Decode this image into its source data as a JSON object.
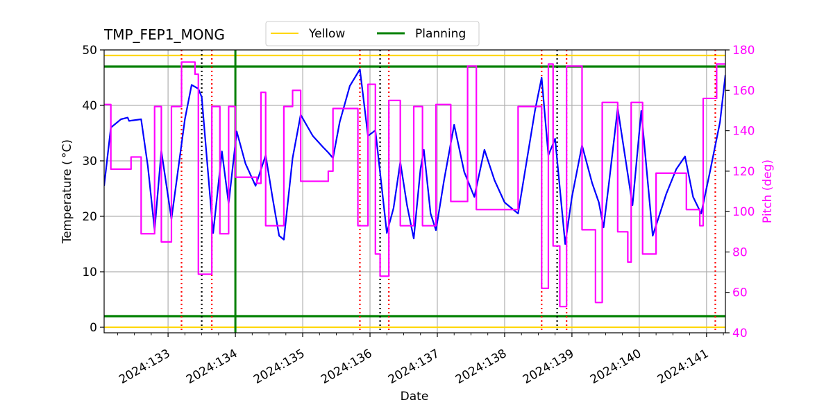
{
  "chart_data": {
    "type": "line",
    "title": "TMP_FEP1_MONG",
    "xlabel": "Date",
    "ylabel": "Temperature ($^\\circ$C)",
    "ylabel_display": "Temperature ( °C)",
    "y2label": "Pitch (deg)",
    "x_unit": "day of year 2024",
    "xlim": [
      132.05,
      141.28
    ],
    "ylim": [
      -1,
      50
    ],
    "y2lim": [
      40,
      180
    ],
    "x_ticks": [
      {
        "value": 133,
        "label": "2024:133"
      },
      {
        "value": 134,
        "label": "2024:134"
      },
      {
        "value": 135,
        "label": "2024:135"
      },
      {
        "value": 136,
        "label": "2024:136"
      },
      {
        "value": 137,
        "label": "2024:137"
      },
      {
        "value": 138,
        "label": "2024:138"
      },
      {
        "value": 139,
        "label": "2024:139"
      },
      {
        "value": 140,
        "label": "2024:140"
      },
      {
        "value": 141,
        "label": "2024:141"
      }
    ],
    "y_ticks": [
      0,
      10,
      20,
      30,
      40,
      50
    ],
    "y2_ticks": [
      40,
      60,
      80,
      100,
      120,
      140,
      160,
      180
    ],
    "grid": true,
    "legend": {
      "placement": "top-center",
      "entries": [
        {
          "name": "Yellow",
          "color": "#ffd700"
        },
        {
          "name": "Planning",
          "color": "#008000"
        }
      ]
    },
    "limit_lines": [
      {
        "name": "Yellow",
        "color": "#ffd700",
        "values": [
          0,
          49
        ]
      },
      {
        "name": "Planning",
        "color": "#008000",
        "values": [
          2,
          47
        ]
      }
    ],
    "vertical_lines": [
      {
        "color": "#008000",
        "style": "solid",
        "x": [
          134.0
        ]
      },
      {
        "color": "#ff0000",
        "style": "dotted",
        "x": [
          133.2,
          133.65,
          135.85,
          136.28,
          138.55,
          138.92,
          141.13
        ]
      },
      {
        "color": "#000000",
        "style": "dotted",
        "x": [
          133.5,
          136.15,
          138.78
        ]
      }
    ],
    "series": [
      {
        "name": "",
        "axis": "left",
        "color": "#0000ff",
        "points": [
          [
            132.05,
            25.5
          ],
          [
            132.15,
            36.0
          ],
          [
            132.3,
            37.5
          ],
          [
            132.4,
            37.8
          ],
          [
            132.42,
            37.2
          ],
          [
            132.6,
            37.5
          ],
          [
            132.7,
            29.0
          ],
          [
            132.8,
            17.5
          ],
          [
            132.9,
            31.8
          ],
          [
            133.05,
            19.5
          ],
          [
            133.25,
            37.5
          ],
          [
            133.35,
            43.7
          ],
          [
            133.45,
            43.0
          ],
          [
            133.5,
            41.5
          ],
          [
            133.6,
            27.0
          ],
          [
            133.67,
            17.0
          ],
          [
            133.8,
            31.7
          ],
          [
            133.9,
            22.3
          ],
          [
            134.02,
            35.3
          ],
          [
            134.15,
            29.5
          ],
          [
            134.3,
            25.5
          ],
          [
            134.45,
            31.0
          ],
          [
            134.55,
            23.5
          ],
          [
            134.65,
            16.5
          ],
          [
            134.72,
            15.8
          ],
          [
            134.85,
            30.5
          ],
          [
            134.97,
            38.3
          ],
          [
            135.15,
            34.5
          ],
          [
            135.3,
            32.5
          ],
          [
            135.38,
            31.5
          ],
          [
            135.45,
            30.5
          ],
          [
            135.55,
            37.0
          ],
          [
            135.7,
            43.5
          ],
          [
            135.85,
            46.5
          ],
          [
            135.97,
            34.5
          ],
          [
            136.08,
            35.5
          ],
          [
            136.25,
            17.0
          ],
          [
            136.35,
            21.5
          ],
          [
            136.45,
            29.8
          ],
          [
            136.55,
            22.0
          ],
          [
            136.65,
            16.0
          ],
          [
            136.75,
            28.5
          ],
          [
            136.8,
            32.0
          ],
          [
            136.9,
            20.5
          ],
          [
            136.98,
            17.5
          ],
          [
            137.1,
            26.5
          ],
          [
            137.25,
            36.5
          ],
          [
            137.4,
            28.0
          ],
          [
            137.55,
            23.5
          ],
          [
            137.7,
            32.0
          ],
          [
            137.85,
            26.5
          ],
          [
            138.0,
            22.5
          ],
          [
            138.2,
            20.5
          ],
          [
            138.45,
            39.0
          ],
          [
            138.55,
            45.0
          ],
          [
            138.65,
            31.0
          ],
          [
            138.75,
            34.0
          ],
          [
            138.9,
            15.0
          ],
          [
            139.0,
            23.5
          ],
          [
            139.15,
            32.8
          ],
          [
            139.3,
            26.0
          ],
          [
            139.4,
            22.5
          ],
          [
            139.47,
            18.0
          ],
          [
            139.55,
            26.0
          ],
          [
            139.68,
            39.5
          ],
          [
            139.9,
            22.0
          ],
          [
            140.03,
            39.0
          ],
          [
            140.2,
            16.5
          ],
          [
            140.4,
            24.0
          ],
          [
            140.55,
            28.5
          ],
          [
            140.68,
            30.8
          ],
          [
            140.8,
            23.5
          ],
          [
            140.92,
            20.5
          ],
          [
            141.05,
            28.0
          ],
          [
            141.2,
            37.0
          ],
          [
            141.28,
            45.5
          ]
        ]
      },
      {
        "name": "",
        "axis": "right",
        "color": "#ff00ff",
        "points": [
          [
            132.05,
            153
          ],
          [
            132.15,
            153
          ],
          [
            132.15,
            121
          ],
          [
            132.45,
            121
          ],
          [
            132.45,
            127
          ],
          [
            132.6,
            127
          ],
          [
            132.6,
            89
          ],
          [
            132.8,
            89
          ],
          [
            132.8,
            152
          ],
          [
            132.9,
            152
          ],
          [
            132.9,
            85
          ],
          [
            133.05,
            85
          ],
          [
            133.05,
            152
          ],
          [
            133.2,
            152
          ],
          [
            133.2,
            174
          ],
          [
            133.4,
            174
          ],
          [
            133.4,
            168
          ],
          [
            133.45,
            168
          ],
          [
            133.45,
            69
          ],
          [
            133.65,
            69
          ],
          [
            133.65,
            152
          ],
          [
            133.77,
            152
          ],
          [
            133.77,
            89
          ],
          [
            133.9,
            89
          ],
          [
            133.9,
            152
          ],
          [
            134.0,
            152
          ],
          [
            134.0,
            117
          ],
          [
            134.32,
            117
          ],
          [
            134.32,
            114
          ],
          [
            134.38,
            114
          ],
          [
            134.38,
            159
          ],
          [
            134.45,
            159
          ],
          [
            134.45,
            93
          ],
          [
            134.72,
            93
          ],
          [
            134.72,
            152
          ],
          [
            134.85,
            152
          ],
          [
            134.85,
            160
          ],
          [
            134.97,
            160
          ],
          [
            134.97,
            115
          ],
          [
            135.38,
            115
          ],
          [
            135.38,
            120
          ],
          [
            135.45,
            120
          ],
          [
            135.45,
            151
          ],
          [
            135.82,
            151
          ],
          [
            135.82,
            93
          ],
          [
            135.97,
            93
          ],
          [
            135.97,
            163
          ],
          [
            136.08,
            163
          ],
          [
            136.08,
            79
          ],
          [
            136.15,
            79
          ],
          [
            136.15,
            68
          ],
          [
            136.28,
            68
          ],
          [
            136.28,
            155
          ],
          [
            136.45,
            155
          ],
          [
            136.45,
            93
          ],
          [
            136.65,
            93
          ],
          [
            136.65,
            152
          ],
          [
            136.78,
            152
          ],
          [
            136.78,
            93
          ],
          [
            136.98,
            93
          ],
          [
            136.98,
            153
          ],
          [
            137.2,
            153
          ],
          [
            137.2,
            105
          ],
          [
            137.45,
            105
          ],
          [
            137.45,
            172
          ],
          [
            137.58,
            172
          ],
          [
            137.58,
            101
          ],
          [
            138.2,
            101
          ],
          [
            138.2,
            152
          ],
          [
            138.55,
            152
          ],
          [
            138.55,
            62
          ],
          [
            138.65,
            62
          ],
          [
            138.65,
            173
          ],
          [
            138.72,
            173
          ],
          [
            138.72,
            83
          ],
          [
            138.82,
            83
          ],
          [
            138.82,
            53
          ],
          [
            138.92,
            53
          ],
          [
            138.92,
            172
          ],
          [
            139.15,
            172
          ],
          [
            139.15,
            91
          ],
          [
            139.35,
            91
          ],
          [
            139.35,
            55
          ],
          [
            139.45,
            55
          ],
          [
            139.45,
            154
          ],
          [
            139.68,
            154
          ],
          [
            139.68,
            90
          ],
          [
            139.83,
            90
          ],
          [
            139.83,
            75
          ],
          [
            139.88,
            75
          ],
          [
            139.88,
            154
          ],
          [
            140.05,
            154
          ],
          [
            140.05,
            79
          ],
          [
            140.25,
            79
          ],
          [
            140.25,
            119
          ],
          [
            140.7,
            119
          ],
          [
            140.7,
            101
          ],
          [
            140.9,
            101
          ],
          [
            140.9,
            93
          ],
          [
            140.95,
            93
          ],
          [
            140.95,
            156
          ],
          [
            141.15,
            156
          ],
          [
            141.15,
            173
          ],
          [
            141.28,
            173
          ]
        ]
      }
    ]
  }
}
